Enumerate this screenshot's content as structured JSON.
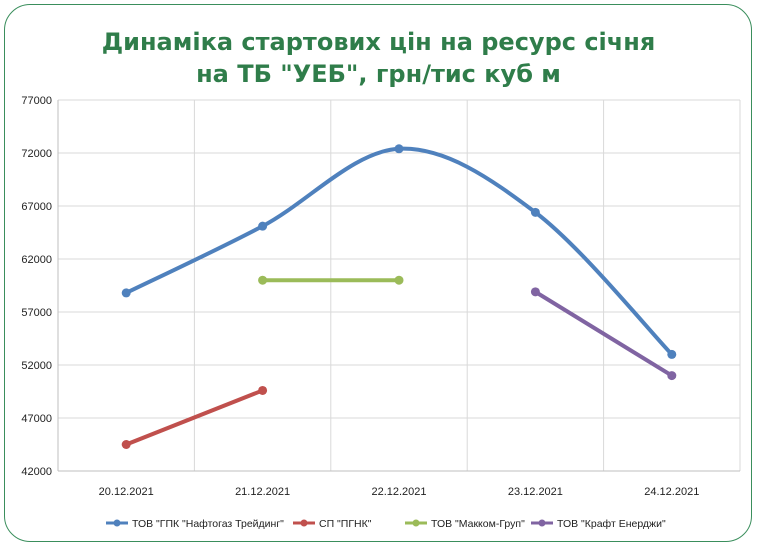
{
  "chart_data": {
    "type": "line",
    "title_line1": "Динаміка стартових цін на ресурс січня",
    "title_line2": "на ТБ \"УЕБ\", грн/тис куб м",
    "categories": [
      "20.12.2021",
      "21.12.2021",
      "22.12.2021",
      "23.12.2021",
      "24.12.2021"
    ],
    "yticks": [
      "42000",
      "47000",
      "52000",
      "57000",
      "62000",
      "67000",
      "72000",
      "77000"
    ],
    "ylim": [
      42000,
      77000
    ],
    "grid": true,
    "legend_position": "bottom",
    "series": [
      {
        "name": "ТОВ \"ГПК \"Нафтогаз Трейдинг\"",
        "color": "#4f81bd",
        "smooth": true,
        "values": [
          58800,
          65100,
          72400,
          66400,
          53000
        ]
      },
      {
        "name": "СП \"ПГНК\"",
        "color": "#c0504d",
        "smooth": false,
        "values": [
          44500,
          49600,
          null,
          null,
          null
        ]
      },
      {
        "name": "ТОВ \"Макком-Груп\"",
        "color": "#9bbb59",
        "smooth": false,
        "values": [
          null,
          60000,
          60000,
          null,
          null
        ]
      },
      {
        "name": "ТОВ \"Крафт Енерджи\"",
        "color": "#8064a2",
        "smooth": false,
        "values": [
          null,
          null,
          null,
          58900,
          51000
        ]
      }
    ]
  }
}
